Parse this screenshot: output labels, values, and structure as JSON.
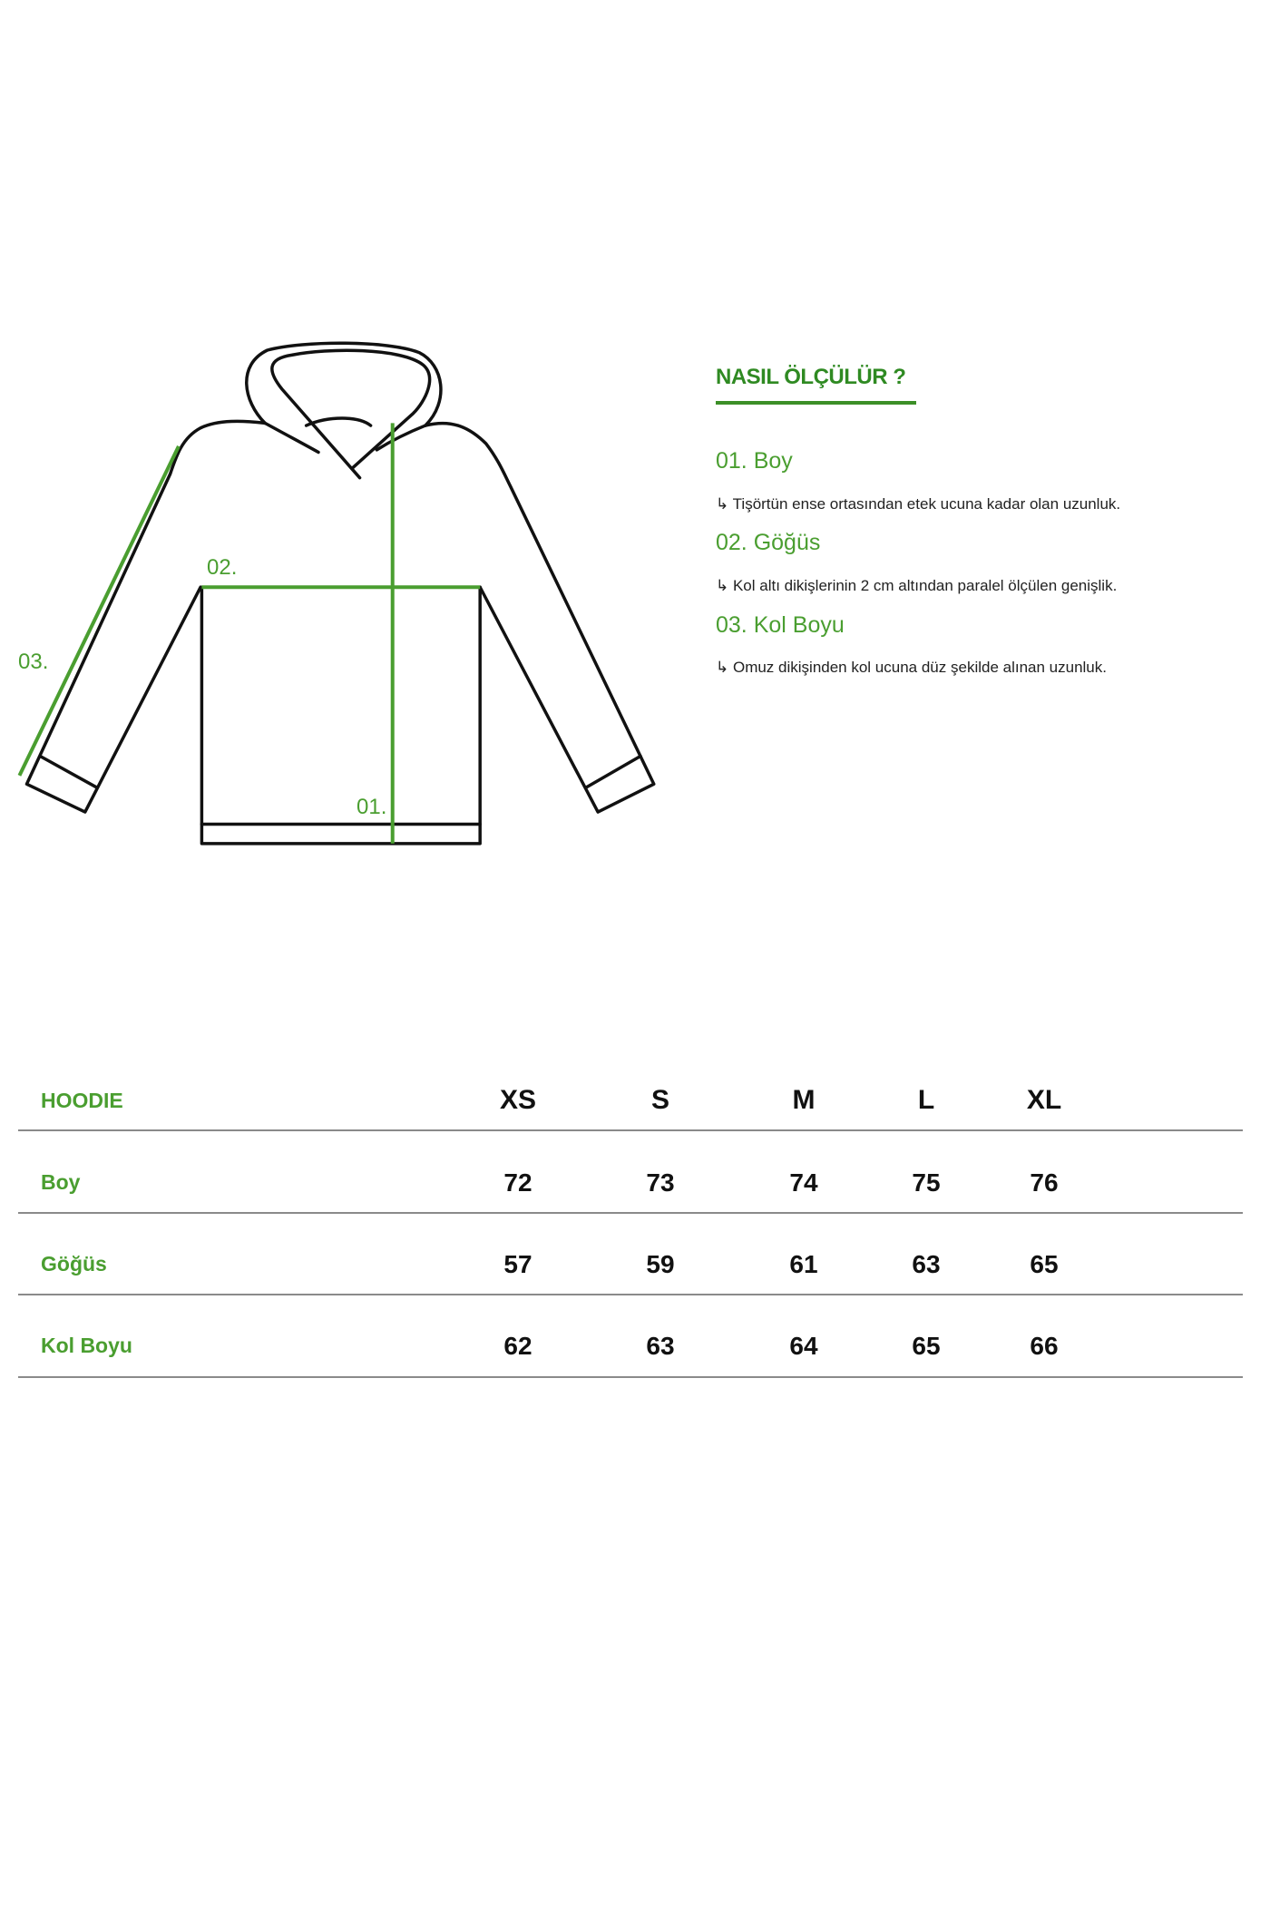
{
  "colors": {
    "accent": "#4a9e30",
    "text": "#111111",
    "divider": "#8a8a8a"
  },
  "diagram": {
    "labels": {
      "boy": "01.",
      "gogus": "02.",
      "kol_boyu": "03."
    }
  },
  "guide": {
    "title": "NASIL ÖLÇÜLÜR ?",
    "steps": [
      {
        "heading": "01. Boy",
        "description": "↳ Tişörtün ense ortasından etek ucuna kadar olan uzunluk."
      },
      {
        "heading": "02. Göğüs",
        "description": "↳ Kol altı dikişlerinin 2 cm altından paralel ölçülen genişlik."
      },
      {
        "heading": "03. Kol Boyu",
        "description": "↳ Omuz dikişinden kol ucuna düz şekilde alınan uzunluk."
      }
    ]
  },
  "table": {
    "title": "HOODIE",
    "sizes": [
      "XS",
      "S",
      "M",
      "L",
      "XL"
    ],
    "rows": [
      {
        "label": "Boy",
        "values": [
          "72",
          "73",
          "74",
          "75",
          "76"
        ]
      },
      {
        "label": "Göğüs",
        "values": [
          "57",
          "59",
          "61",
          "63",
          "65"
        ]
      },
      {
        "label": "Kol Boyu",
        "values": [
          "62",
          "63",
          "64",
          "65",
          "66"
        ]
      }
    ]
  }
}
